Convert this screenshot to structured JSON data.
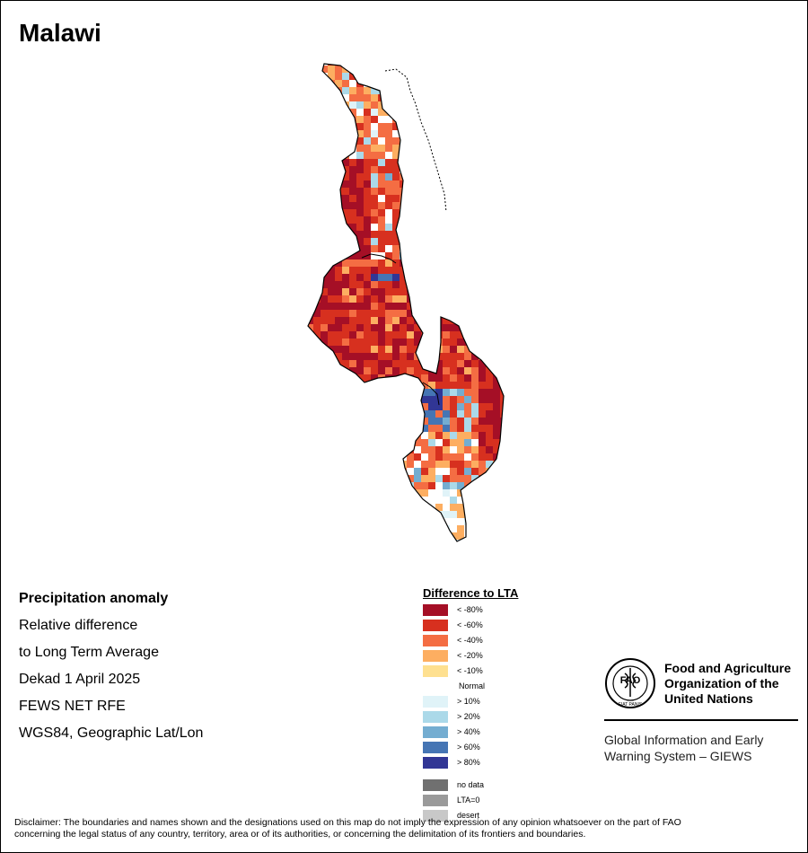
{
  "map": {
    "title": "Malawi",
    "colors": {
      "lt80": "#a50f26",
      "lt60": "#d7301f",
      "lt40": "#f46d43",
      "lt20": "#fdae61",
      "lt10": "#fee090",
      "normal": "#ffffff",
      "gt10": "#e0f3f8",
      "gt20": "#abd9e9",
      "gt40": "#74add1",
      "gt60": "#4575b4",
      "gt80": "#313695"
    }
  },
  "info": {
    "line1": "Precipitation anomaly",
    "line2": "Relative difference",
    "line3": "to Long Term Average",
    "line4": "Dekad 1 April 2025",
    "line5": "FEWS NET RFE",
    "line6": "WGS84, Geographic Lat/Lon"
  },
  "legend": {
    "title": "Difference to LTA",
    "items": [
      {
        "label": "< -80%",
        "color": "#a50f26"
      },
      {
        "label": "< -60%",
        "color": "#d7301f"
      },
      {
        "label": "< -40%",
        "color": "#f46d43"
      },
      {
        "label": "< -20%",
        "color": "#fdae61"
      },
      {
        "label": "< -10%",
        "color": "#fee090"
      },
      {
        "label": "Normal",
        "color": "#ffffff"
      },
      {
        "label": "> 10%",
        "color": "#e0f3f8"
      },
      {
        "label": "> 20%",
        "color": "#abd9e9"
      },
      {
        "label": "> 40%",
        "color": "#74add1"
      },
      {
        "label": "> 60%",
        "color": "#4575b4"
      },
      {
        "label": "> 80%",
        "color": "#313695"
      }
    ],
    "extras": [
      {
        "label": "no data",
        "color": "#707070"
      },
      {
        "label": "LTA=0",
        "color": "#9a9a9a"
      },
      {
        "label": "desert",
        "color": "#c8c8c8"
      }
    ]
  },
  "logo": {
    "org_line1": "Food and Agriculture",
    "org_line2": "Organization of the",
    "org_line3": "United Nations",
    "giews_line1": "Global Information and Early",
    "giews_line2": "Warning System – GIEWS",
    "seal_text": "FAO",
    "motto": "FIAT PANIS"
  },
  "disclaimer": {
    "line1": "Disclaimer: The boundaries and names shown and the designations used on this map do not imply the expression of any opinion whatsoever on the part of FAO",
    "line2": "concerning the legal status of any country, territory, area or of its authorities, or concerning the delimitation of its frontiers and boundaries."
  }
}
